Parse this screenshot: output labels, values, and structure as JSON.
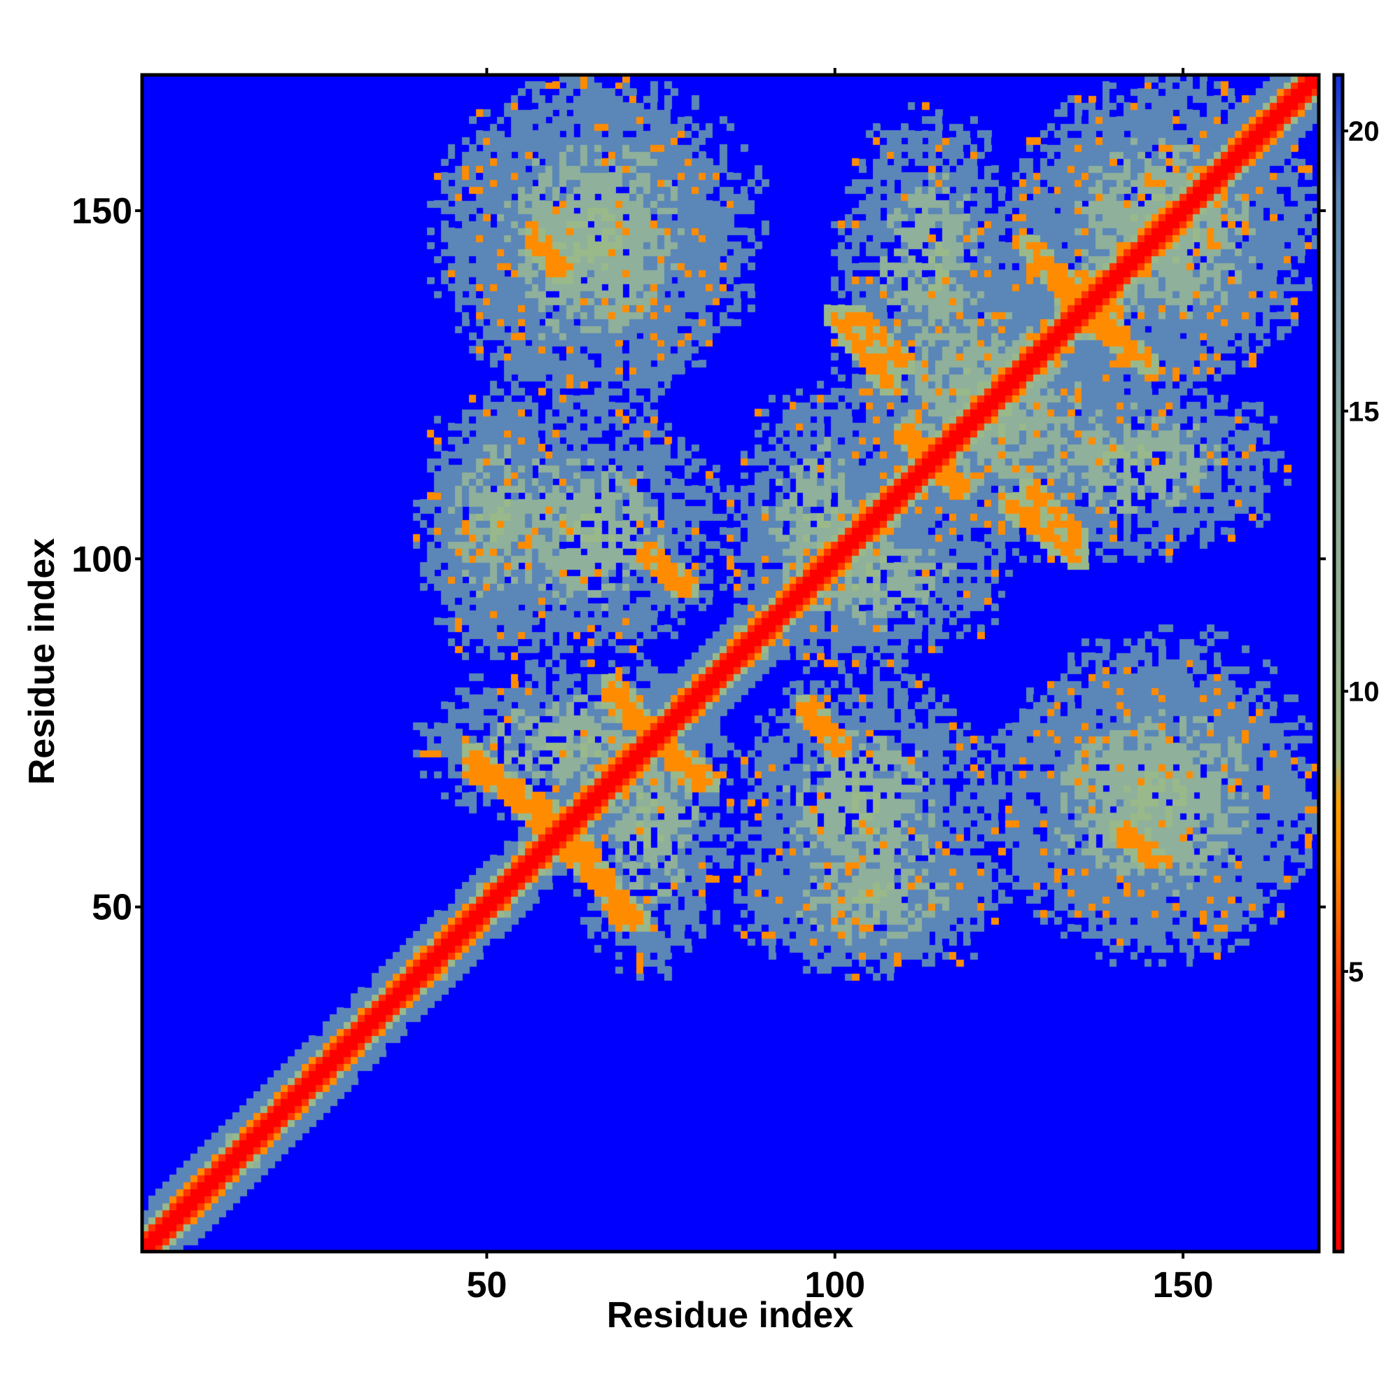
{
  "chart_data": {
    "type": "heatmap",
    "title": "",
    "xlabel": "Residue index",
    "ylabel": "Residue index",
    "xlim": [
      1,
      169
    ],
    "ylim": [
      1,
      169
    ],
    "x_ticks": [
      50,
      100,
      150
    ],
    "y_ticks": [
      50,
      100,
      150
    ],
    "grid": false,
    "colorbar": {
      "ticks": [
        5,
        10,
        15,
        20
      ],
      "range": [
        0,
        21
      ],
      "colors": [
        "#ff0000",
        "#ff8c00",
        "#9ab98a",
        "#5b86b8",
        "#0000ff"
      ],
      "placement": "right"
    },
    "colors": {
      "background": "#0000ff",
      "diagonal": "#ff0000",
      "contact": "#ff8c00",
      "near": "#9ab98a",
      "mid": "#5b86b8"
    },
    "matrix_size": 169,
    "symmetric": true,
    "diagonal_value": 2,
    "max_value": 21,
    "helix_blocks": [
      {
        "i": [
          62,
          85
        ],
        "j": [
          40,
          85
        ]
      },
      {
        "i": [
          85,
          125
        ],
        "j": [
          40,
          62
        ]
      },
      {
        "i": [
          42,
          85
        ],
        "j": [
          85,
          123
        ]
      },
      {
        "i": [
          85,
          110
        ],
        "j": [
          85,
          125
        ]
      },
      {
        "i": [
          100,
          140
        ],
        "j": [
          105,
          145
        ]
      },
      {
        "i": [
          125,
          169
        ],
        "j": [
          125,
          169
        ]
      },
      {
        "i": [
          125,
          169
        ],
        "j": [
          42,
          90
        ]
      },
      {
        "i": [
          100,
          128
        ],
        "j": [
          120,
          165
        ]
      },
      {
        "i": [
          45,
          85
        ],
        "j": [
          120,
          169
        ]
      }
    ],
    "contact_lines": [
      {
        "i": [
          48,
          62
        ],
        "j": [
          72,
          58
        ]
      },
      {
        "i": [
          62,
          70
        ],
        "j": [
          62,
          48
        ]
      },
      {
        "i": [
          68,
          82
        ],
        "j": [
          80,
          68
        ]
      },
      {
        "i": [
          73,
          78
        ],
        "j": [
          101,
          96
        ]
      },
      {
        "i": [
          103,
          110
        ],
        "j": [
          135,
          128
        ]
      },
      {
        "i": [
          110,
          118
        ],
        "j": [
          118,
          110
        ]
      },
      {
        "i": [
          125,
          135
        ],
        "j": [
          108,
          100
        ]
      },
      {
        "i": [
          130,
          140
        ],
        "j": [
          142,
          136
        ]
      },
      {
        "i": [
          136,
          145
        ],
        "j": [
          135,
          128
        ]
      },
      {
        "i": [
          57,
          60
        ],
        "j": [
          145,
          142
        ]
      },
      {
        "i": [
          141,
          146
        ],
        "j": [
          61,
          57
        ]
      },
      {
        "i": [
          96,
          99
        ],
        "j": [
          79,
          75
        ]
      }
    ]
  }
}
